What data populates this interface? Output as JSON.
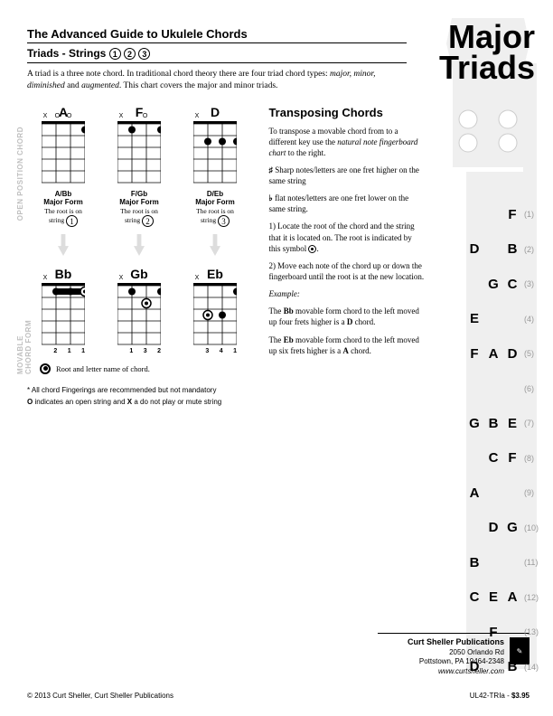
{
  "header": {
    "guide_title": "The Advanced Guide to Ukulele Chords",
    "subtitle_prefix": "Triads - Strings",
    "subtitle_nums": [
      "1",
      "2",
      "3"
    ],
    "big_title_l1": "Major",
    "big_title_l2": "Triads"
  },
  "intro": "A triad is a three note chord. In traditional chord theory there are four triad chord types: major, minor, diminished and augmented. This chart covers the major and minor triads.",
  "side_labels": {
    "open": "OPEN POSITION CHORD",
    "movable": "MOVABLE CHORD FORM"
  },
  "open_chords": [
    {
      "name": "A",
      "ox": [
        "X",
        "O",
        "O",
        ""
      ],
      "dots": [
        {
          "s": 4,
          "f": 1,
          "r": false
        }
      ],
      "form": "A/Bb",
      "root_string": "1"
    },
    {
      "name": "F",
      "ox": [
        "X",
        "",
        "O",
        ""
      ],
      "dots": [
        {
          "s": 2,
          "f": 1,
          "r": false
        },
        {
          "s": 4,
          "f": 1,
          "r": false
        }
      ],
      "form": "F/Gb",
      "root_string": "2"
    },
    {
      "name": "D",
      "ox": [
        "X",
        "",
        "",
        ""
      ],
      "dots": [
        {
          "s": 2,
          "f": 2,
          "r": false
        },
        {
          "s": 3,
          "f": 2,
          "r": false
        },
        {
          "s": 4,
          "f": 2,
          "r": false
        }
      ],
      "form": "D/Eb",
      "root_string": "3"
    }
  ],
  "movable_chords": [
    {
      "name": "Bb",
      "ox": [
        "X",
        "",
        "",
        ""
      ],
      "dots": [
        {
          "s": 2,
          "f": 1,
          "r": false
        },
        {
          "s": 3,
          "f": 1,
          "r": false
        },
        {
          "s": 4,
          "f": 1,
          "r": true
        }
      ],
      "fingers": [
        "",
        "2",
        "1",
        "1"
      ],
      "bar": true
    },
    {
      "name": "Gb",
      "ox": [
        "X",
        "",
        "",
        ""
      ],
      "dots": [
        {
          "s": 2,
          "f": 1,
          "r": false
        },
        {
          "s": 3,
          "f": 2,
          "r": true
        },
        {
          "s": 4,
          "f": 1,
          "r": false
        }
      ],
      "fingers": [
        "",
        "1",
        "3",
        "2"
      ],
      "bar": false
    },
    {
      "name": "Eb",
      "ox": [
        "X",
        "",
        "",
        ""
      ],
      "dots": [
        {
          "s": 2,
          "f": 3,
          "r": true
        },
        {
          "s": 3,
          "f": 3,
          "r": false
        },
        {
          "s": 4,
          "f": 1,
          "r": false
        }
      ],
      "fingers": [
        "",
        "3",
        "4",
        "1"
      ],
      "bar": false
    }
  ],
  "root_legend": "Root and letter name of chord.",
  "transposing": {
    "heading": "Transposing Chords",
    "p1": "To transpose a movable chord from to a different key use the natural note fingerboard chart to the right.",
    "sharp": "Sharp notes/letters are one fret higher on the same string",
    "flat": "flat notes/letters are one fret lower on the same string.",
    "step1": "1) Locate the root of the chord and the string that it is located on. The root is indicated by this symbol ",
    "step2": "2) Move each note of the chord up or down the fingerboard until the root is at the new location.",
    "example_label": "Example:",
    "ex1": "The Bb movable form chord to the left moved up four frets higher is a D chord.",
    "ex2": "The Eb movable form chord to the left moved up six frets higher is a A chord."
  },
  "fretboard": [
    {
      "notes": [
        "",
        "",
        "F"
      ],
      "num": "(1)"
    },
    {
      "notes": [
        "D",
        "",
        "B"
      ],
      "num": "(2)"
    },
    {
      "notes": [
        "",
        "G",
        "C"
      ],
      "num": "(3)"
    },
    {
      "notes": [
        "E",
        "",
        ""
      ],
      "num": "(4)"
    },
    {
      "notes": [
        "F",
        "A",
        "D"
      ],
      "num": "(5)"
    },
    {
      "notes": [
        "",
        "",
        ""
      ],
      "num": "(6)"
    },
    {
      "notes": [
        "G",
        "B",
        "E"
      ],
      "num": "(7)"
    },
    {
      "notes": [
        "",
        "C",
        "F"
      ],
      "num": "(8)"
    },
    {
      "notes": [
        "A",
        "",
        ""
      ],
      "num": "(9)"
    },
    {
      "notes": [
        "",
        "D",
        "G"
      ],
      "num": "(10)"
    },
    {
      "notes": [
        "B",
        "",
        ""
      ],
      "num": "(11)"
    },
    {
      "notes": [
        "C",
        "E",
        "A"
      ],
      "num": "(12)"
    },
    {
      "notes": [
        "",
        "F",
        ""
      ],
      "num": "(13)"
    },
    {
      "notes": [
        "D",
        "",
        "B"
      ],
      "num": "(14)"
    }
  ],
  "footer": {
    "note1": "* All chord Fingerings are recommended but not mandatory",
    "note2": "O indicates an open string and X a do not play or mute string",
    "publisher": "Curt Sheller Publications",
    "addr1": "2050 Orlando Rd",
    "addr2": "Pottstown, PA 19464-2348",
    "site": "www.curtsheller.com",
    "copyright": "© 2013 Curt Sheller, Curt Sheller Publications",
    "sku": "UL42-TRIa - ",
    "price": "$3.95"
  },
  "colors": {
    "bg": "#ffffff",
    "text": "#000000",
    "gray": "#bfbfbf",
    "neck": "#efefef",
    "fretnum": "#999999"
  }
}
